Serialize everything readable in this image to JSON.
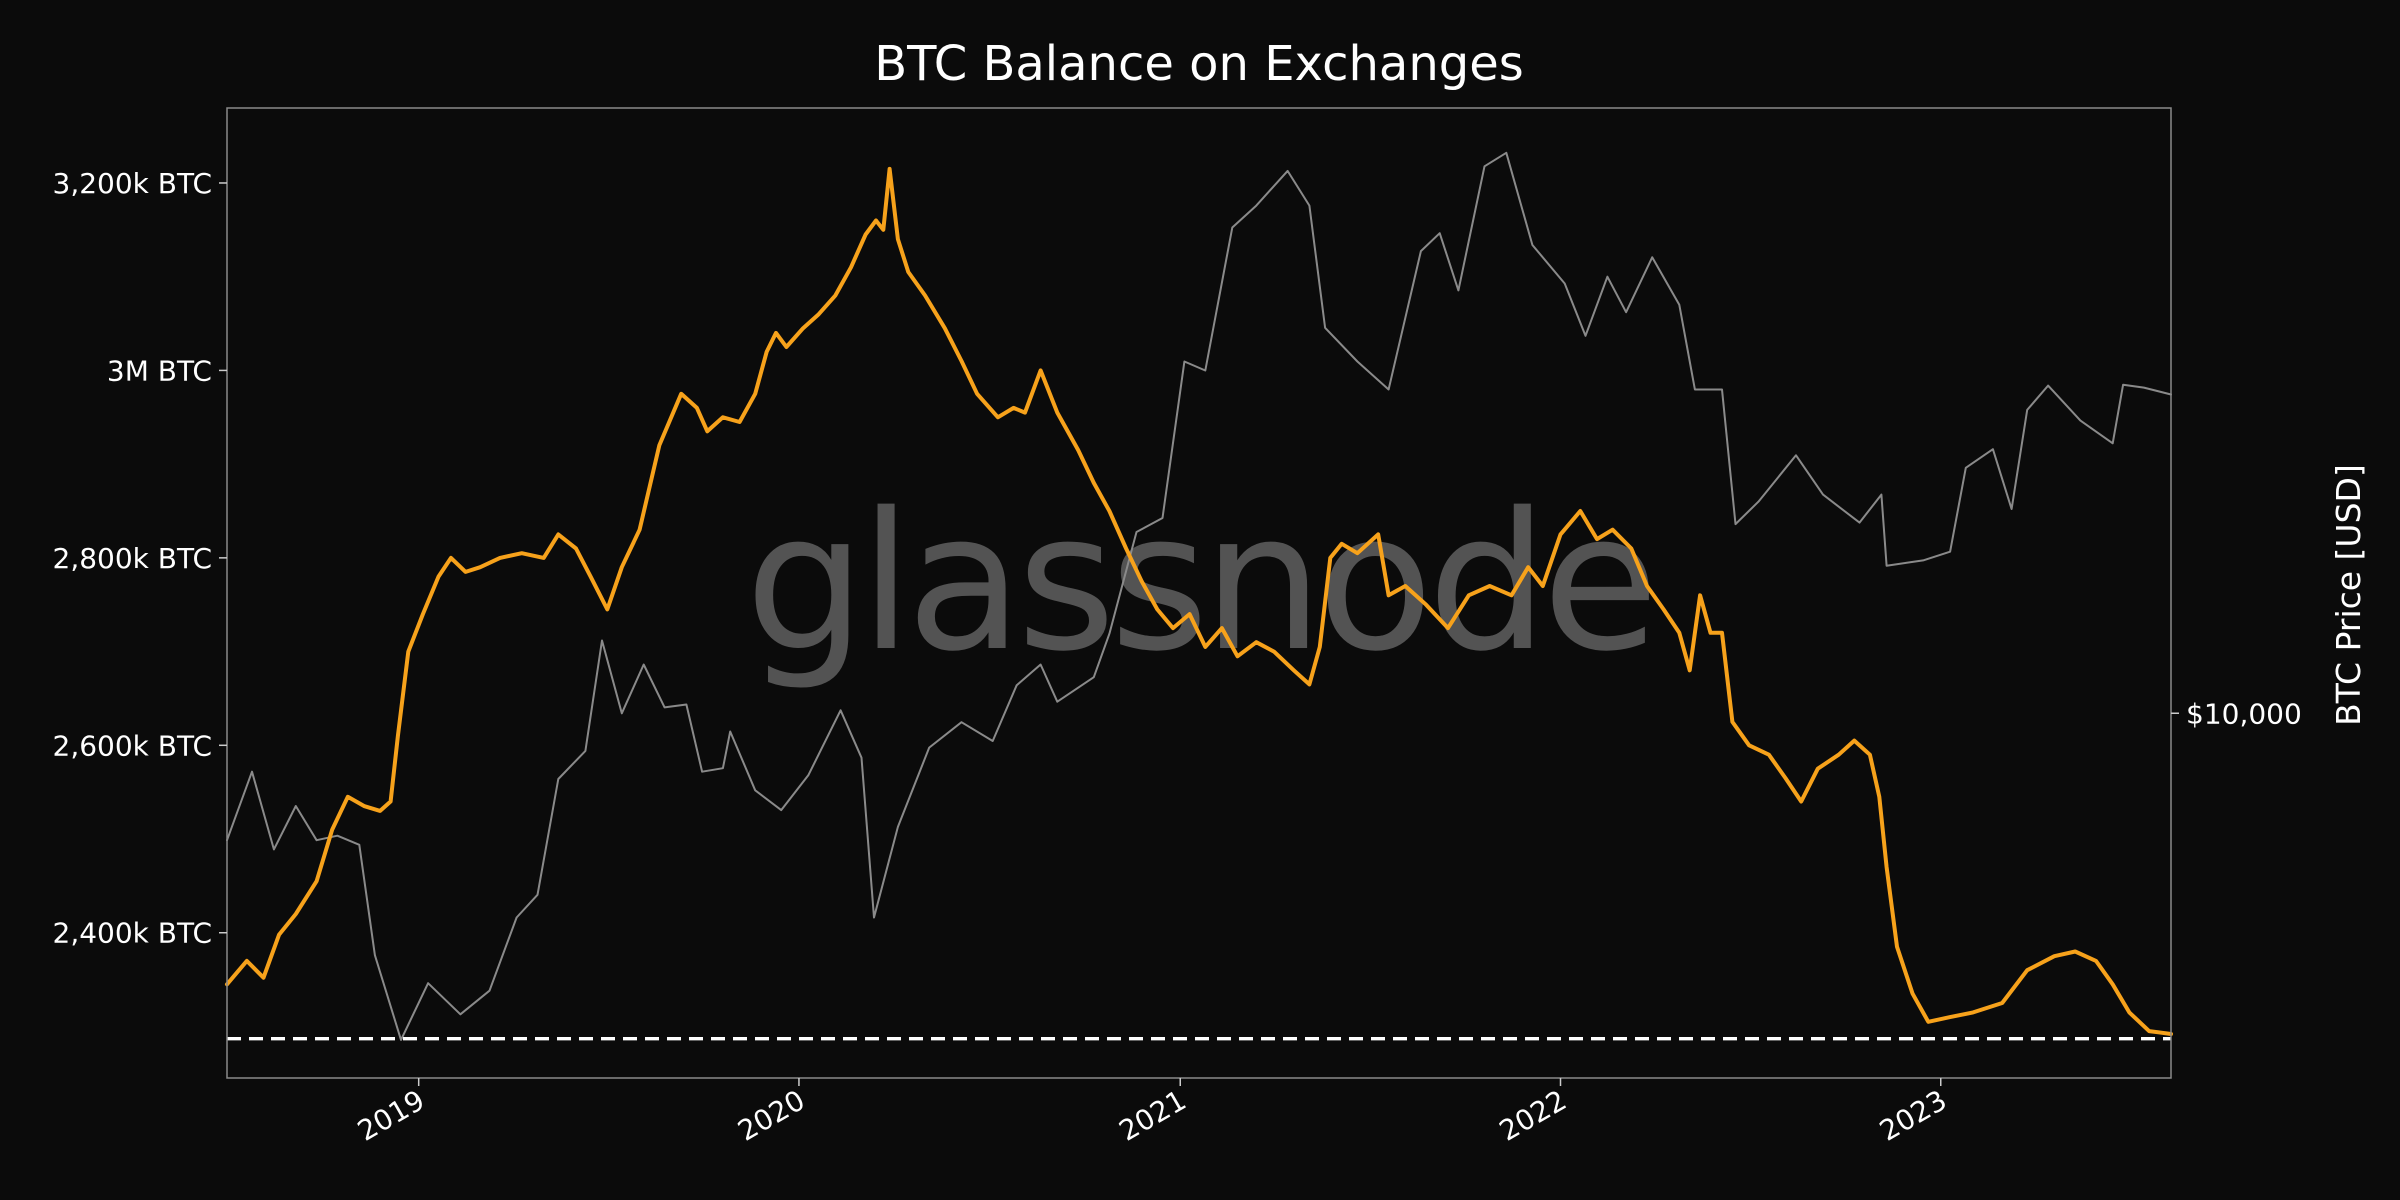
{
  "chart_data": {
    "type": "line",
    "title": "BTC Balance on Exchanges",
    "watermark": "glassnode",
    "x_range": [
      "2018-07-01",
      "2023-08-10"
    ],
    "x_ticks": [
      {
        "label": "2019",
        "date": "2019-01-01"
      },
      {
        "label": "2020",
        "date": "2020-01-01"
      },
      {
        "label": "2021",
        "date": "2021-01-01"
      },
      {
        "label": "2022",
        "date": "2022-01-01"
      },
      {
        "label": "2023",
        "date": "2023-01-01"
      }
    ],
    "y_left": {
      "range": [
        2245000,
        3280000
      ],
      "ticks": [
        {
          "label": "2,400k BTC",
          "value": 2400000
        },
        {
          "label": "2,600k BTC",
          "value": 2600000
        },
        {
          "label": "2,800k BTC",
          "value": 2800000
        },
        {
          "label": "3M BTC",
          "value": 3000000
        },
        {
          "label": "3,200k BTC",
          "value": 3200000
        }
      ]
    },
    "y_right": {
      "label": "BTC Price [USD]",
      "scale": "log",
      "range": [
        2900,
        78000
      ],
      "ticks": [
        {
          "label": "$10,000",
          "value": 10000
        }
      ]
    },
    "reference_line": {
      "value": 2287000,
      "style": "dashed",
      "color": "#ffffff"
    },
    "series": [
      {
        "role": "balance",
        "axis": "left",
        "color": "#f7a21b",
        "points": [
          [
            "2018-07-01",
            2345000
          ],
          [
            "2018-07-20",
            2370000
          ],
          [
            "2018-08-05",
            2352000
          ],
          [
            "2018-08-20",
            2398000
          ],
          [
            "2018-09-05",
            2420000
          ],
          [
            "2018-09-25",
            2455000
          ],
          [
            "2018-10-10",
            2510000
          ],
          [
            "2018-10-25",
            2545000
          ],
          [
            "2018-11-10",
            2535000
          ],
          [
            "2018-11-25",
            2530000
          ],
          [
            "2018-12-05",
            2540000
          ],
          [
            "2018-12-12",
            2610000
          ],
          [
            "2018-12-22",
            2700000
          ],
          [
            "2019-01-05",
            2740000
          ],
          [
            "2019-01-20",
            2780000
          ],
          [
            "2019-02-01",
            2800000
          ],
          [
            "2019-02-15",
            2785000
          ],
          [
            "2019-03-01",
            2790000
          ],
          [
            "2019-03-20",
            2800000
          ],
          [
            "2019-04-10",
            2805000
          ],
          [
            "2019-05-01",
            2800000
          ],
          [
            "2019-05-15",
            2825000
          ],
          [
            "2019-06-01",
            2810000
          ],
          [
            "2019-06-15",
            2780000
          ],
          [
            "2019-07-01",
            2745000
          ],
          [
            "2019-07-15",
            2790000
          ],
          [
            "2019-08-01",
            2830000
          ],
          [
            "2019-08-20",
            2920000
          ],
          [
            "2019-09-10",
            2975000
          ],
          [
            "2019-09-25",
            2960000
          ],
          [
            "2019-10-05",
            2935000
          ],
          [
            "2019-10-20",
            2950000
          ],
          [
            "2019-11-05",
            2945000
          ],
          [
            "2019-11-20",
            2975000
          ],
          [
            "2019-12-01",
            3020000
          ],
          [
            "2019-12-10",
            3040000
          ],
          [
            "2019-12-20",
            3025000
          ],
          [
            "2020-01-05",
            3045000
          ],
          [
            "2020-01-20",
            3060000
          ],
          [
            "2020-02-05",
            3080000
          ],
          [
            "2020-02-20",
            3110000
          ],
          [
            "2020-03-05",
            3145000
          ],
          [
            "2020-03-15",
            3160000
          ],
          [
            "2020-03-22",
            3150000
          ],
          [
            "2020-03-28",
            3215000
          ],
          [
            "2020-04-05",
            3140000
          ],
          [
            "2020-04-15",
            3105000
          ],
          [
            "2020-05-01",
            3080000
          ],
          [
            "2020-05-20",
            3045000
          ],
          [
            "2020-06-05",
            3010000
          ],
          [
            "2020-06-20",
            2975000
          ],
          [
            "2020-07-10",
            2950000
          ],
          [
            "2020-07-25",
            2960000
          ],
          [
            "2020-08-05",
            2955000
          ],
          [
            "2020-08-20",
            3000000
          ],
          [
            "2020-09-05",
            2955000
          ],
          [
            "2020-09-25",
            2915000
          ],
          [
            "2020-10-10",
            2880000
          ],
          [
            "2020-10-25",
            2850000
          ],
          [
            "2020-11-10",
            2810000
          ],
          [
            "2020-11-25",
            2775000
          ],
          [
            "2020-12-10",
            2745000
          ],
          [
            "2020-12-25",
            2725000
          ],
          [
            "2021-01-10",
            2740000
          ],
          [
            "2021-01-25",
            2705000
          ],
          [
            "2021-02-10",
            2725000
          ],
          [
            "2021-02-25",
            2695000
          ],
          [
            "2021-03-15",
            2710000
          ],
          [
            "2021-04-01",
            2700000
          ],
          [
            "2021-04-20",
            2680000
          ],
          [
            "2021-05-05",
            2665000
          ],
          [
            "2021-05-15",
            2705000
          ],
          [
            "2021-05-25",
            2800000
          ],
          [
            "2021-06-05",
            2815000
          ],
          [
            "2021-06-20",
            2805000
          ],
          [
            "2021-07-10",
            2825000
          ],
          [
            "2021-07-20",
            2760000
          ],
          [
            "2021-08-05",
            2770000
          ],
          [
            "2021-08-25",
            2750000
          ],
          [
            "2021-09-15",
            2725000
          ],
          [
            "2021-10-05",
            2760000
          ],
          [
            "2021-10-25",
            2770000
          ],
          [
            "2021-11-15",
            2760000
          ],
          [
            "2021-12-01",
            2790000
          ],
          [
            "2021-12-15",
            2770000
          ],
          [
            "2022-01-01",
            2825000
          ],
          [
            "2022-01-20",
            2850000
          ],
          [
            "2022-02-05",
            2820000
          ],
          [
            "2022-02-20",
            2830000
          ],
          [
            "2022-03-10",
            2810000
          ],
          [
            "2022-03-25",
            2770000
          ],
          [
            "2022-04-10",
            2745000
          ],
          [
            "2022-04-25",
            2720000
          ],
          [
            "2022-05-05",
            2680000
          ],
          [
            "2022-05-15",
            2760000
          ],
          [
            "2022-05-25",
            2720000
          ],
          [
            "2022-06-05",
            2720000
          ],
          [
            "2022-06-15",
            2625000
          ],
          [
            "2022-07-01",
            2600000
          ],
          [
            "2022-07-20",
            2590000
          ],
          [
            "2022-08-05",
            2565000
          ],
          [
            "2022-08-20",
            2540000
          ],
          [
            "2022-09-05",
            2575000
          ],
          [
            "2022-09-25",
            2590000
          ],
          [
            "2022-10-10",
            2605000
          ],
          [
            "2022-10-25",
            2590000
          ],
          [
            "2022-11-03",
            2545000
          ],
          [
            "2022-11-10",
            2470000
          ],
          [
            "2022-11-20",
            2385000
          ],
          [
            "2022-12-05",
            2335000
          ],
          [
            "2022-12-20",
            2305000
          ],
          [
            "2023-01-10",
            2310000
          ],
          [
            "2023-02-01",
            2315000
          ],
          [
            "2023-03-01",
            2325000
          ],
          [
            "2023-03-25",
            2360000
          ],
          [
            "2023-04-20",
            2375000
          ],
          [
            "2023-05-10",
            2380000
          ],
          [
            "2023-05-30",
            2370000
          ],
          [
            "2023-06-15",
            2345000
          ],
          [
            "2023-07-01",
            2315000
          ],
          [
            "2023-07-20",
            2295000
          ],
          [
            "2023-08-10",
            2292000
          ]
        ]
      },
      {
        "role": "price",
        "axis": "right",
        "color": "#8a8a8a",
        "points": [
          [
            "2018-07-01",
            6500
          ],
          [
            "2018-07-25",
            8200
          ],
          [
            "2018-08-15",
            6300
          ],
          [
            "2018-09-05",
            7300
          ],
          [
            "2018-09-25",
            6500
          ],
          [
            "2018-10-15",
            6600
          ],
          [
            "2018-11-05",
            6400
          ],
          [
            "2018-11-20",
            4400
          ],
          [
            "2018-12-15",
            3300
          ],
          [
            "2019-01-10",
            4000
          ],
          [
            "2019-02-10",
            3600
          ],
          [
            "2019-03-10",
            3900
          ],
          [
            "2019-04-05",
            5000
          ],
          [
            "2019-04-25",
            5400
          ],
          [
            "2019-05-15",
            8000
          ],
          [
            "2019-06-10",
            8800
          ],
          [
            "2019-06-26",
            12800
          ],
          [
            "2019-07-15",
            10000
          ],
          [
            "2019-08-05",
            11800
          ],
          [
            "2019-08-25",
            10200
          ],
          [
            "2019-09-15",
            10300
          ],
          [
            "2019-09-30",
            8200
          ],
          [
            "2019-10-20",
            8300
          ],
          [
            "2019-10-27",
            9400
          ],
          [
            "2019-11-20",
            7700
          ],
          [
            "2019-12-15",
            7200
          ],
          [
            "2020-01-10",
            8100
          ],
          [
            "2020-02-10",
            10100
          ],
          [
            "2020-03-01",
            8600
          ],
          [
            "2020-03-13",
            5000
          ],
          [
            "2020-04-05",
            6800
          ],
          [
            "2020-05-05",
            8900
          ],
          [
            "2020-06-05",
            9700
          ],
          [
            "2020-07-05",
            9100
          ],
          [
            "2020-07-28",
            11000
          ],
          [
            "2020-08-20",
            11800
          ],
          [
            "2020-09-05",
            10400
          ],
          [
            "2020-10-10",
            11300
          ],
          [
            "2020-10-25",
            13100
          ],
          [
            "2020-11-20",
            18500
          ],
          [
            "2020-12-15",
            19400
          ],
          [
            "2021-01-05",
            33000
          ],
          [
            "2021-01-25",
            32000
          ],
          [
            "2021-02-20",
            52000
          ],
          [
            "2021-03-15",
            56000
          ],
          [
            "2021-04-14",
            63000
          ],
          [
            "2021-05-05",
            56000
          ],
          [
            "2021-05-20",
            37000
          ],
          [
            "2021-06-20",
            33000
          ],
          [
            "2021-07-20",
            30000
          ],
          [
            "2021-08-20",
            48000
          ],
          [
            "2021-09-07",
            51000
          ],
          [
            "2021-09-25",
            42000
          ],
          [
            "2021-10-20",
            64000
          ],
          [
            "2021-11-10",
            67000
          ],
          [
            "2021-12-05",
            49000
          ],
          [
            "2022-01-05",
            43000
          ],
          [
            "2022-01-25",
            36000
          ],
          [
            "2022-02-15",
            44000
          ],
          [
            "2022-03-05",
            39000
          ],
          [
            "2022-03-30",
            47000
          ],
          [
            "2022-04-25",
            40000
          ],
          [
            "2022-05-10",
            30000
          ],
          [
            "2022-06-05",
            30000
          ],
          [
            "2022-06-18",
            19000
          ],
          [
            "2022-07-10",
            20500
          ],
          [
            "2022-08-15",
            24000
          ],
          [
            "2022-09-10",
            21000
          ],
          [
            "2022-10-15",
            19100
          ],
          [
            "2022-11-05",
            21000
          ],
          [
            "2022-11-10",
            16500
          ],
          [
            "2022-12-15",
            16800
          ],
          [
            "2023-01-10",
            17300
          ],
          [
            "2023-01-25",
            23000
          ],
          [
            "2023-02-20",
            24500
          ],
          [
            "2023-03-10",
            20000
          ],
          [
            "2023-03-25",
            28000
          ],
          [
            "2023-04-14",
            30400
          ],
          [
            "2023-05-15",
            27000
          ],
          [
            "2023-06-15",
            25000
          ],
          [
            "2023-06-25",
            30500
          ],
          [
            "2023-07-15",
            30200
          ],
          [
            "2023-08-10",
            29500
          ]
        ]
      }
    ]
  }
}
